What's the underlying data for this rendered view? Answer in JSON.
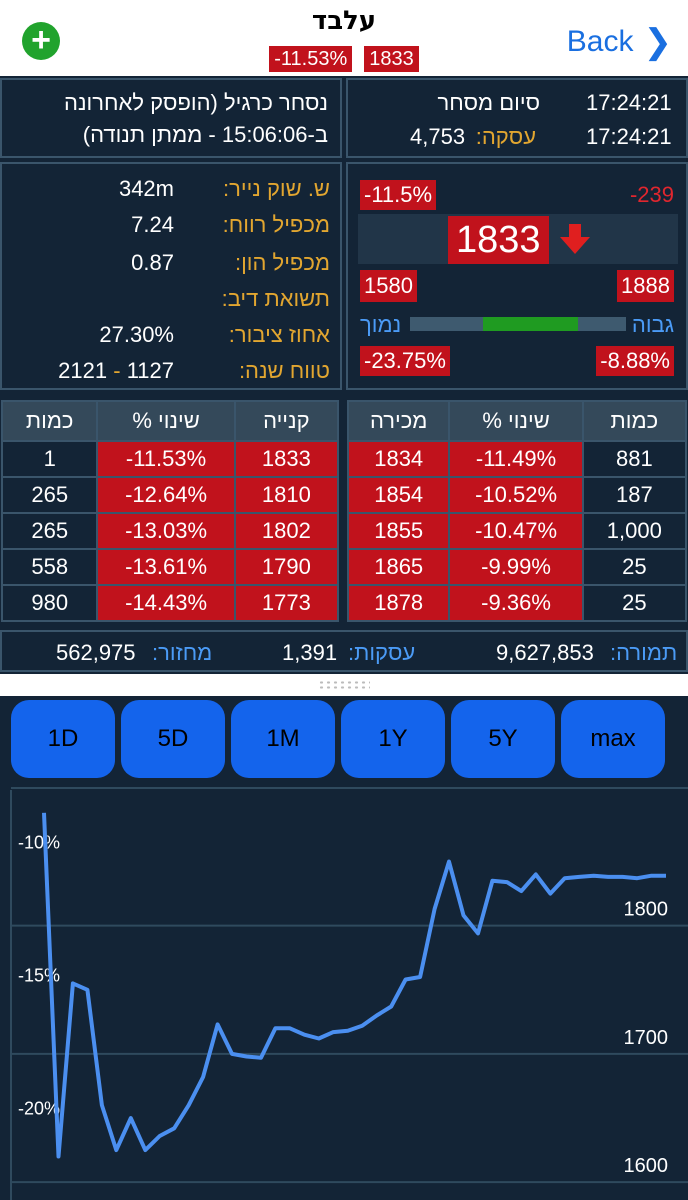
{
  "header": {
    "title": "עלבד",
    "change_pct": "-11.53%",
    "price": "1833",
    "back_label": "Back",
    "add_label": "+"
  },
  "status": {
    "trade_status": "נסחר כרגיל (הופסק לאחרונה",
    "halt_line": "ב-15:06:06 - ממתן תנודה)",
    "session_label": "סיום מסחר",
    "session_time": "17:24:21",
    "deal_label": "עסקה:",
    "deal_value": "4,753",
    "deal_time": "17:24:21"
  },
  "fundamentals": {
    "market_cap_label": "ש. שוק נייר:",
    "market_cap": "342m",
    "pe_label": "מכפיל רווח:",
    "pe": "7.24",
    "pb_label": "מכפיל הון:",
    "pb": "0.87",
    "div_label": "תשואת דיב:",
    "div": "",
    "float_label": "אחוז ציבור:",
    "float": "27.30%",
    "range_label": "טווח שנה:",
    "range_low": "1127",
    "range_sep": "-",
    "range_high": "2121"
  },
  "quote": {
    "change_pct": "-11.5%",
    "change_abs": "-239",
    "price": "1833",
    "low": "1580",
    "high": "1888",
    "low_label": "נמוך",
    "high_label": "גבוה",
    "low_pct": "-23.75%",
    "high_pct": "-8.88%",
    "day_range_position": 0.53
  },
  "book": {
    "buy_headers": {
      "qty": "כמות",
      "pct": "% שינוי",
      "price": "קנייה"
    },
    "sell_headers": {
      "price": "מכירה",
      "pct": "% שינוי",
      "qty": "כמות"
    },
    "buy_rows": [
      {
        "qty": "1",
        "pct": "-11.53%",
        "price": "1833"
      },
      {
        "qty": "265",
        "pct": "-12.64%",
        "price": "1810"
      },
      {
        "qty": "265",
        "pct": "-13.03%",
        "price": "1802"
      },
      {
        "qty": "558",
        "pct": "-13.61%",
        "price": "1790"
      },
      {
        "qty": "980",
        "pct": "-14.43%",
        "price": "1773"
      }
    ],
    "sell_rows": [
      {
        "price": "1834",
        "pct": "-11.49%",
        "qty": "881"
      },
      {
        "price": "1854",
        "pct": "-10.52%",
        "qty": "187"
      },
      {
        "price": "1855",
        "pct": "-10.47%",
        "qty": "1,000"
      },
      {
        "price": "1865",
        "pct": "-9.99%",
        "qty": "25"
      },
      {
        "price": "1878",
        "pct": "-9.36%",
        "qty": "25"
      }
    ]
  },
  "summary": {
    "turnover_label": "מחזור:",
    "turnover": "562,975",
    "deals_label": "עסקות:",
    "deals": "1,391",
    "volume_label": "תמורה:",
    "volume": "9,627,853"
  },
  "ranges": [
    "1D",
    "5D",
    "1M",
    "1Y",
    "5Y",
    "max"
  ],
  "colors": {
    "accent": "#1464ec",
    "down": "#c1121c",
    "up": "#21a32d",
    "line": "#4b8ff0",
    "label": "#e2a630"
  },
  "chart_data": {
    "type": "line",
    "title": "",
    "xlabel": "",
    "ylabel": "",
    "left_axis_ticks": [
      "-10%",
      "-15%",
      "-20%"
    ],
    "right_axis_ticks": [
      "1800",
      "1700",
      "1600"
    ],
    "ylim": [
      1590,
      1898
    ],
    "grid": true,
    "y": [
      1888,
      1620,
      1755,
      1750,
      1660,
      1625,
      1650,
      1625,
      1636,
      1642,
      1660,
      1682,
      1723,
      1700,
      1698,
      1697,
      1720,
      1720,
      1715,
      1712,
      1717,
      1718,
      1722,
      1730,
      1737,
      1758,
      1760,
      1813,
      1850,
      1808,
      1794,
      1835,
      1834,
      1827,
      1840,
      1825,
      1837,
      1838,
      1839,
      1838,
      1838,
      1837,
      1839,
      1839
    ]
  }
}
